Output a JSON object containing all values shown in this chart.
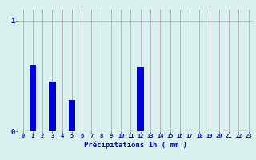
{
  "hours": [
    0,
    1,
    2,
    3,
    4,
    5,
    6,
    7,
    8,
    9,
    10,
    11,
    12,
    13,
    14,
    15,
    16,
    17,
    18,
    19,
    20,
    21,
    22,
    23
  ],
  "values": [
    0,
    0.6,
    0.0,
    0.45,
    0.0,
    0.28,
    0,
    0,
    0,
    0,
    0,
    0,
    0.58,
    0.0,
    0,
    0,
    0,
    0,
    0,
    0,
    0,
    0,
    0,
    0
  ],
  "bar_color": "#0000dd",
  "background_color": "#d8f0ee",
  "grid_color_v": "#b8a8b8",
  "grid_color_h": "#a8c0c0",
  "xlabel": "Précipitations 1h ( mm )",
  "xlabel_color": "#0000cc",
  "yticks": [
    0,
    1
  ],
  "ylim": [
    0,
    1.1
  ],
  "xlim": [
    -0.5,
    23.5
  ],
  "tick_label_color": "#0000cc",
  "bar_width": 0.7,
  "tick_fontsize": 5.0,
  "xlabel_fontsize": 6.5
}
